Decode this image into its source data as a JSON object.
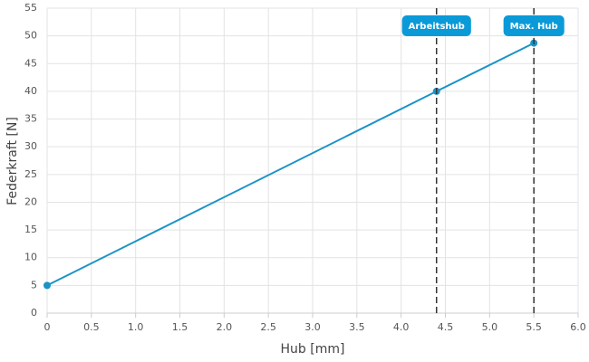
{
  "chart_data": {
    "type": "line",
    "x": [
      0,
      4.4,
      5.5
    ],
    "values": [
      5,
      40,
      48.7
    ],
    "color": "#1a93c6",
    "xlabel": "Hub [mm]",
    "ylabel": "Federkraft [N]",
    "xlim": [
      0,
      6
    ],
    "ylim": [
      0,
      55
    ],
    "xticks": [
      0,
      0.5,
      {
        "value": 1,
        "label": "1.0"
      },
      1.5,
      {
        "value": 2,
        "label": "2.0"
      },
      2.5,
      {
        "value": 3,
        "label": "3.0"
      },
      3.5,
      {
        "value": 4,
        "label": "4.0"
      },
      4.5,
      {
        "value": 5,
        "label": "5.0"
      },
      5.5,
      {
        "value": 6,
        "label": "6.0"
      }
    ],
    "yticks": [
      0,
      5,
      10,
      15,
      20,
      25,
      30,
      35,
      40,
      45,
      50,
      55
    ],
    "grid": true,
    "annotations": [
      {
        "x": 4.4,
        "label": "Arbeitshub"
      },
      {
        "x": 5.5,
        "label": "Max. Hub"
      }
    ],
    "annotation_color": "#0a9ad8"
  }
}
